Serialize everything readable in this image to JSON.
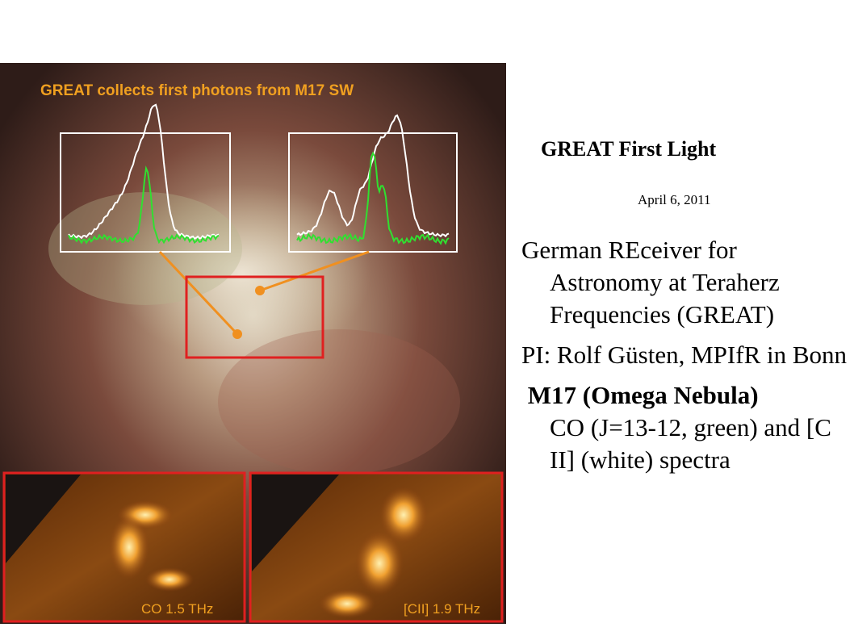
{
  "image": {
    "caption": "GREAT collects first photons from M17 SW",
    "left_panel_label": "CO 1.5 THz",
    "right_panel_label": "[CII] 1.9 THz"
  },
  "header": {
    "title": "GREAT First Light",
    "date": "April 6, 2011"
  },
  "bullets": [
    {
      "text": "German REceiver for Astronomy at Teraherz Frequencies (GREAT)"
    },
    {
      "text": "PI: Rolf Güsten, MPIfR in Bonn"
    },
    {
      "bold": "M17 (Omega Nebula)",
      "text": "CO (J=13-12, green) and [C II] (white) spectra"
    }
  ]
}
